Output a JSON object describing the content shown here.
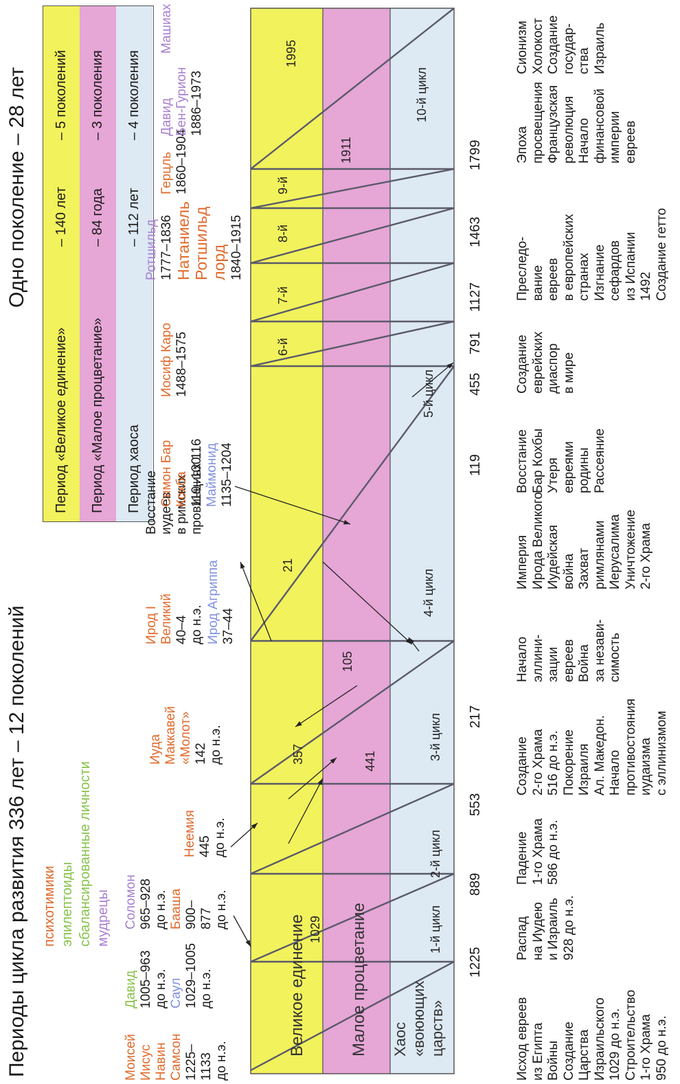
{
  "title_left": "Периоды цикла развития 336 лет – 12 поколений",
  "title_right": "Одно поколение – 28 лет",
  "colors": {
    "unity": "#f2f25c",
    "prosperity": "#e6a6d6",
    "chaos": "#dde9f3",
    "orange": "#e06a2c",
    "green": "#86c24b",
    "purple": "#a77fd0",
    "blue": "#8090e0"
  },
  "legend": [
    {
      "name": "Период «Великое единение»",
      "years": "– 140 лет",
      "gens": "– 5 поколений"
    },
    {
      "name": "Период «Малое процветание»",
      "years": "– 84 года",
      "gens": "– 3 поколения"
    },
    {
      "name": "Период хаоса",
      "years": "– 112 лет",
      "gens": "– 4 поколения"
    }
  ],
  "types": {
    "psychotimics": "психотимики",
    "epileptoids": "эпилептоиды",
    "balanced": "сбалансированные личности",
    "sages": "мудрецы"
  },
  "bands": {
    "unity": "Великое единение",
    "prosperity": "Малое процветание",
    "chaos_1": "Хаос",
    "chaos_2": "«воюющих",
    "chaos_3": "царств»"
  },
  "cycle_labels": [
    "1-й цикл",
    "2-й цикл",
    "3-й цикл",
    "4-й цикл",
    "5-й цикл",
    "6-й",
    "7-й",
    "8-й",
    "9-й",
    "10-й цикл"
  ],
  "peak_years": [
    "1029",
    "357",
    "441",
    "21",
    "105",
    "1911",
    "1995"
  ],
  "timeline_years": [
    "1225",
    "889",
    "553",
    "217",
    "119",
    "455",
    "791",
    "1127",
    "1463",
    "1799"
  ],
  "figures": {
    "g1": {
      "moses": "Моисей",
      "joshua_1": "Иисус",
      "joshua_2": "Навин",
      "samson": "Самсон",
      "dates": "1225–\n1133\nдо н.э."
    },
    "g2": {
      "david": "Давид",
      "dates_a": "1005–963\nдо н.э.",
      "saul": "Саул",
      "dates_b": "1029–1005\nдо н.э."
    },
    "g3": {
      "solomon": "Соломон",
      "dates_a": "965–928\nдо н.э.",
      "baasha": "Бааша",
      "dates_b": "900–\n877\nдо н.э."
    },
    "g4": {
      "nehemiah": "Неемия",
      "dates": "445\nдо н.э."
    },
    "g5": {
      "judah": "Иуда\nМаккавей\n«Молот»",
      "dates": "142\nдо н.э."
    },
    "g6": {
      "herod": "Ирод I\nВеликий",
      "dates_a": "40–4\nдо н.э.",
      "agrippa": "Ирод Агриппа",
      "dates_b": "37–44"
    },
    "g7": {
      "revolt": "Восстание\nиудеев\nв римских\nпровинциях 116"
    },
    "g8": {
      "bar_kochba": "Симон Бар\nКохба",
      "dates_a": "119–130",
      "maimonides": "Маймонид",
      "dates_b": "1135–1204"
    },
    "g9": {
      "caro": "Иосиф Каро",
      "dates": "1488–1575"
    },
    "g10": {
      "rothschild": "Ротшильд",
      "dates_a": "1777–1836",
      "nathaniel": "Натаниель\nРотшильд\nлорд",
      "dates_b": "1840–1915"
    },
    "g11": {
      "herzl": "Герцль",
      "dates": "1860–1904"
    },
    "g12": {
      "bengurion": "Давид\nБен-Гурион",
      "dates": "1886–1973"
    },
    "g13": {
      "mashiach": "Машиах"
    }
  },
  "events": [
    "Исход евреев\nиз Египта\nВойны\nСоздание\nЦарства\nИзраильского\n1029 до н.э.\nСтроительство\n1-го Храма\n950 до н.э.",
    "Распад\nна Иудею\nи Израиль\n928 до н.э.",
    "Падение\n1-го Храма\n586 до н.э.",
    "Создание\n2-го Храма\n516 до н.э.\nПокорение\nИзраиля\nАл. Македон.\nНачало\nпротивостояния\nиудаизма\nс эллинизмом",
    "Начало\nэллини-\nзации\nевреев\nВойна\nза незави-\nсимость",
    "Империя\nИрода Великого\nИудейская\nвойна\nЗахват\nримлянами\nИерусалима\nУничтожение\n2-го Храма",
    "Восстание\nБар Кохбы\nУтеря\nевреями\nродины\nРассеяние",
    "Создание\nеврейских\nдиаспор\nв мире",
    "Преследо-\nвание\nевреев\nв европейских\nстранах\nИзгнание\nсефардов\nиз Испании\n1492\nСоздание гетто",
    "Эпоха\nпросвещения\nФранцузская\nреволюция\nНачало\nфинансовой\nимперии\nевреев",
    "Сионизм\nХолокост\nСоздание\nгосудар-\nства\nИзраиль"
  ]
}
